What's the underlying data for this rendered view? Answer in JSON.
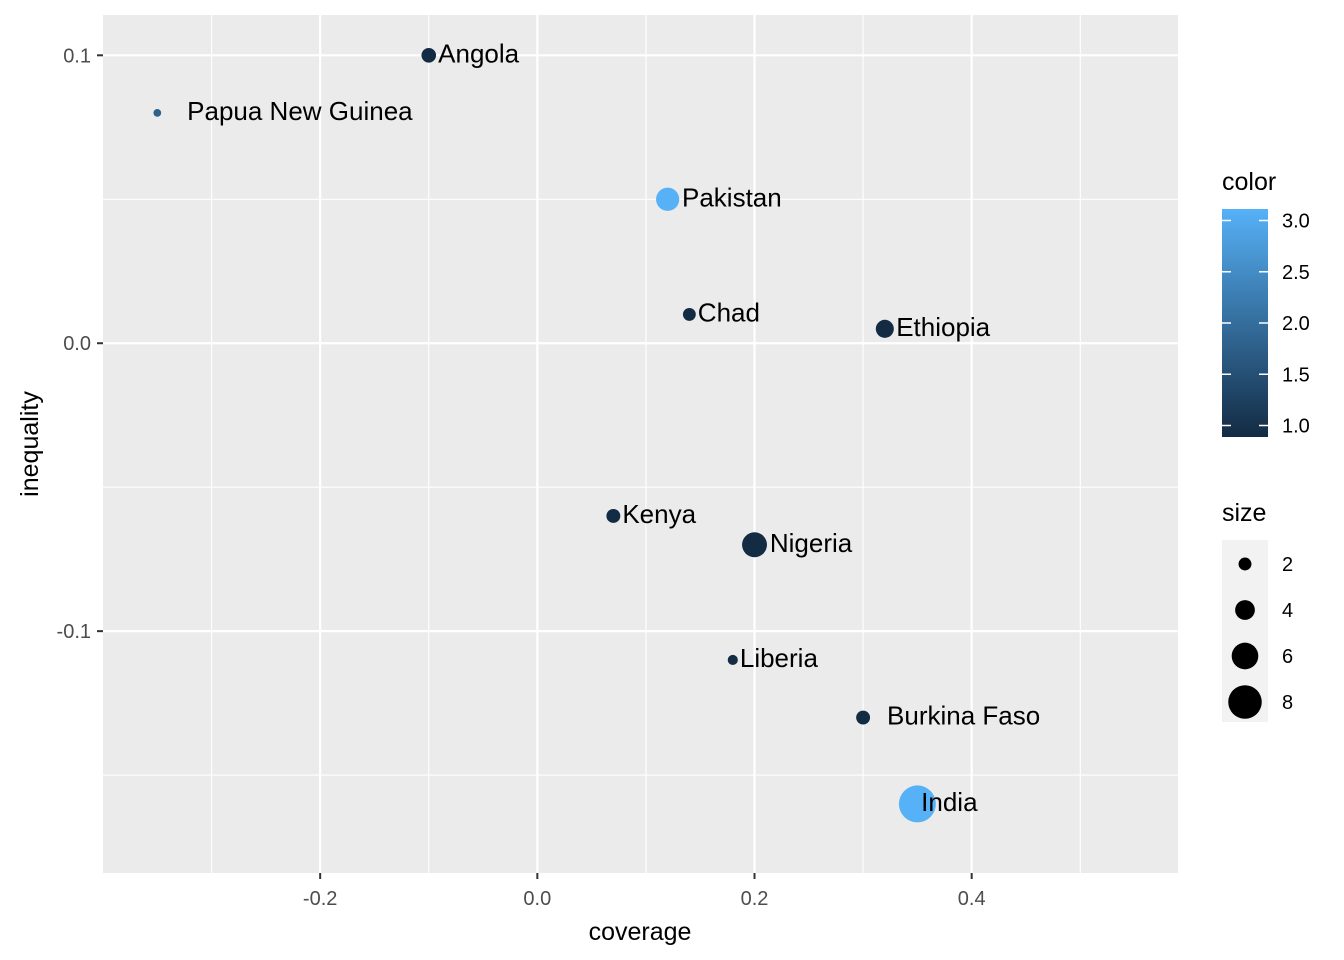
{
  "chart_data": {
    "type": "scatter",
    "title": "",
    "xlabel": "coverage",
    "ylabel": "inequality",
    "xlim": [
      -0.4,
      0.59
    ],
    "ylim": [
      -0.184,
      0.114
    ],
    "x_ticks": [
      -0.2,
      0.0,
      0.2,
      0.4
    ],
    "x_tick_labels": [
      "-0.2",
      "0.0",
      "0.2",
      "0.4"
    ],
    "x_minor_ticks": [
      -0.3,
      -0.1,
      0.1,
      0.3,
      0.5
    ],
    "y_ticks": [
      -0.1,
      0.0,
      0.1
    ],
    "y_tick_labels": [
      "-0.1",
      "0.0",
      "0.1"
    ],
    "y_minor_ticks": [
      -0.15,
      -0.05,
      0.05
    ],
    "grid": true,
    "panel_background": "#ebebeb",
    "grid_color": "#ffffff",
    "points": [
      {
        "label": "Angola",
        "x": -0.1,
        "y": 0.1,
        "color": 1.0,
        "size": 2.5
      },
      {
        "label": "Papua New Guinea",
        "x": -0.35,
        "y": 0.08,
        "color": 1.8,
        "size": 0.5
      },
      {
        "label": "Pakistan",
        "x": 0.12,
        "y": 0.05,
        "color": 3.0,
        "size": 5.0
      },
      {
        "label": "Chad",
        "x": 0.14,
        "y": 0.01,
        "color": 1.0,
        "size": 2.0
      },
      {
        "label": "Ethiopia",
        "x": 0.32,
        "y": 0.005,
        "color": 1.0,
        "size": 3.5
      },
      {
        "label": "Kenya",
        "x": 0.07,
        "y": -0.06,
        "color": 1.0,
        "size": 2.3
      },
      {
        "label": "Nigeria",
        "x": 0.2,
        "y": -0.07,
        "color": 1.0,
        "size": 5.5
      },
      {
        "label": "Liberia",
        "x": 0.18,
        "y": -0.11,
        "color": 1.0,
        "size": 1.2
      },
      {
        "label": "Burkina Faso",
        "x": 0.3,
        "y": -0.13,
        "color": 1.0,
        "size": 2.3
      },
      {
        "label": "India",
        "x": 0.35,
        "y": -0.16,
        "color": 3.0,
        "size": 9.0
      }
    ],
    "legend": {
      "placement": "right",
      "color": {
        "title": "color",
        "ticks": [
          3.0,
          2.5,
          2.0,
          1.5,
          1.0
        ],
        "tick_labels": [
          "3.0",
          "2.5",
          "2.0",
          "1.5",
          "1.0"
        ],
        "range": [
          1.0,
          3.0
        ],
        "low_color": "#132b43",
        "high_color": "#56b1f7"
      },
      "size": {
        "title": "size",
        "entries": [
          {
            "label": "2",
            "value": 2
          },
          {
            "label": "4",
            "value": 4
          },
          {
            "label": "6",
            "value": 6
          },
          {
            "label": "8",
            "value": 8
          }
        ]
      }
    }
  }
}
